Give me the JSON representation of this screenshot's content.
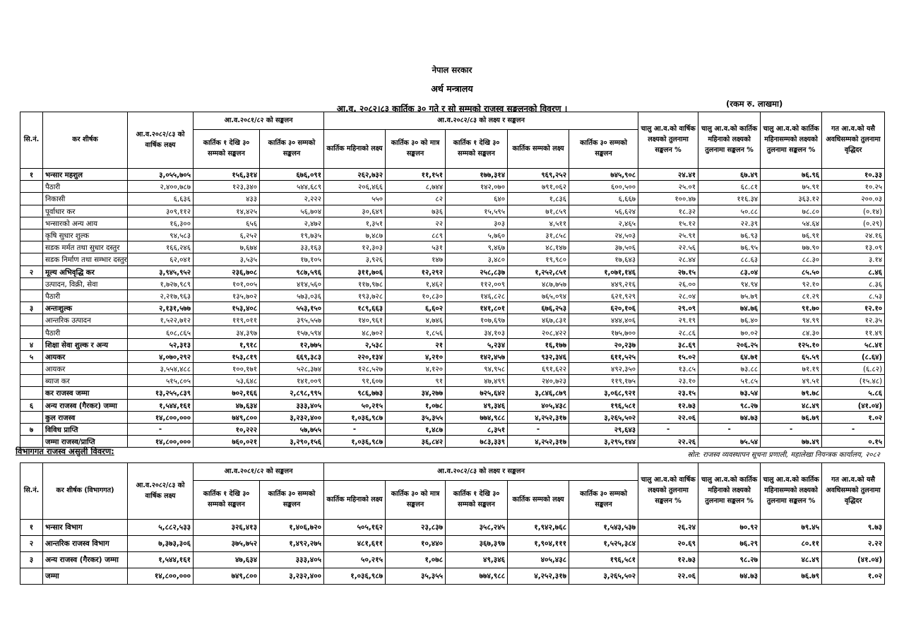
{
  "page": {
    "government": "नेपाल सरकार",
    "ministry": "अर्थ मन्त्रालय",
    "title": "आ.व. २०८२।८३ कार्तिक ३० गते र सो सम्मको राजस्व सङ्कलनको विवरण ।",
    "unit_note": "(रकम रु. लाखमा)"
  },
  "headers": {
    "sn": "सि.नं.",
    "tax_head": "कर शीर्षक",
    "tax_head_dept": "कर शीर्षक (विभागगत)",
    "annual_target": "आ.व.२०८२/८३ को वार्षिक लक्ष्य",
    "prev_group": "आ.व.२०८१/८२ को सङ्कलन",
    "prev_sub": [
      "कार्तिक १ देखि ३० सम्मको सङ्कलन",
      "कार्तिक ३० सम्मको सङ्कलन"
    ],
    "cur_group": "आ.व.२०८२/८३ को लक्ष्य र सङ्कलन",
    "cur_sub": [
      "कार्तिक महिनाको लक्ष्य",
      "कार्तिक ३० को मात्र सङ्कलन",
      "कार्तिक १ देखि ३० सम्मको सङ्कलन",
      "कार्तिक सम्मको लक्ष्य",
      "कार्तिक ३० सम्मको सङ्कलन"
    ],
    "pct": [
      "चालु आ.व.को वार्षिक लक्ष्यको तुलनामा सङ्कलन %",
      "चालु आ.व.को कार्तिक महिनाको लक्ष्यको तुलनामा सङ्कलन %",
      "चालु आ.व.को कार्तिक महिनासम्मको लक्ष्यको तुलनामा सङ्कलन %",
      "गत आ.व.को यसै अवधिसम्मको तुलनामा वृद्धिदर"
    ]
  },
  "main_table": {
    "rows": [
      {
        "sn": "१",
        "label": "भन्सार महशुल",
        "bold": true,
        "values": [
          "३,०५५,७०५",
          "१५६,३१४",
          "६७६,०९१",
          "२६२,७३२",
          "११,१५१",
          "१७७,३१४",
          "९६९,२५२",
          "७४५,९०८",
          "२४.४१",
          "६७.४९",
          "७६.९६",
          "१०.३३"
        ]
      },
      {
        "sn": "",
        "label": "पैठारी",
        "bold": false,
        "values": [
          "२,४००,७८७",
          "१२३,३४०",
          "५४४,६८९",
          "२०६,४६६",
          "८,७४४",
          "१४२,०७०",
          "७९१,०६२",
          "६००,५००",
          "२५.०१",
          "६८.८१",
          "७५.९१",
          "१०.२५"
        ]
      },
      {
        "sn": "",
        "label": "निकासी",
        "bold": false,
        "values": [
          "६,६३६",
          "४३३",
          "२,२२२",
          "५५०",
          "८२",
          "६४०",
          "१,८३६",
          "६,६६७",
          "१००.४७",
          "११६.३४",
          "३६३.१२",
          "२००.०३"
        ]
      },
      {
        "sn": "",
        "label": "पूर्वाधार कर",
        "bold": false,
        "values": [
          "३०९,११२",
          "१४,४२५",
          "५६,७०४",
          "३०,६४९",
          "७३६",
          "१५,५९५",
          "७१,८५९",
          "५६,६२४",
          "१८.३२",
          "५०.८८",
          "७८.८०",
          "(०.१४)"
        ]
      },
      {
        "sn": "",
        "label": "भन्सारको अन्य आय",
        "bold": false,
        "values": [
          "१६,३००",
          "६५६",
          "२,४७२",
          "१,३५१",
          "२२",
          "३०३",
          "४,५११",
          "२,४६५",
          "१५.१२",
          "२२.३९",
          "५४.६४",
          "(०.२९)"
        ]
      },
      {
        "sn": "",
        "label": "कृषि सुधार शुल्क",
        "bold": false,
        "values": [
          "९४,५८३",
          "६,२५२",
          "१९,७३५",
          "७,४८७",
          "८८९",
          "५,७६०",
          "३१,८५८",
          "२४,५०३",
          "२५.९१",
          "७६.९३",
          "७६.९१",
          "२४.१६"
        ]
      },
      {
        "sn": "",
        "label": "सडक मर्मत तथा सुधार दस्तुर",
        "bold": false,
        "values": [
          "१६६,२४६",
          "७,६७४",
          "३३,१६३",
          "१२,३०३",
          "५३१",
          "९,४६७",
          "४८,१४७",
          "३७,५०६",
          "२२.५६",
          "७६.९५",
          "७७.९०",
          "१३.०९"
        ]
      },
      {
        "sn": "",
        "label": "सडक निर्माण तथा सम्भार दस्तुर",
        "bold": false,
        "values": [
          "६२,०४१",
          "३,५३५",
          "१७,१०५",
          "३,९२६",
          "१४७",
          "३,४८०",
          "१९,९८०",
          "१७,६४३",
          "२८.४४",
          "८८.६३",
          "८८.३०",
          "३.१४"
        ]
      },
      {
        "sn": "२",
        "label": "मूल्य अभिवृद्धि कर",
        "bold": true,
        "values": [
          "३,९४५,९५२",
          "२३६,७०८",
          "९८७,५९६",
          "३११,७०६",
          "१२,२९२",
          "२५८,८३७",
          "१,२५२,८५१",
          "१,०७१,१४६",
          "२७.१५",
          "८३.०४",
          "८५.५०",
          "८.४६"
        ]
      },
      {
        "sn": "",
        "label": "उत्पादन, विक्री, सेवा",
        "bold": false,
        "values": [
          "१,७२७,९८९",
          "१०१,००५",
          "४१४,५६०",
          "११७,९७८",
          "१,४६२",
          "११२,००९",
          "४८७,७५७",
          "४४९,२१६",
          "२६.००",
          "९४.९४",
          "९२.१०",
          "८.३६"
        ]
      },
      {
        "sn": "",
        "label": "पैठारी",
        "bold": false,
        "values": [
          "२,२१७,९६३",
          "१३५,७०२",
          "५७३,०३६",
          "१९३,७२८",
          "१०,८३०",
          "१४६,८२८",
          "७६५,०९४",
          "६२१,९२९",
          "२८.०४",
          "७५.७९",
          "८१.२९",
          "८.५३"
        ]
      },
      {
        "sn": "३",
        "label": "अन्तःशुल्क",
        "bold": true,
        "values": [
          "२,१३१,५७७",
          "१५३,४०८",
          "५५३,१५०",
          "१८९,६६३",
          "६,६०२",
          "१४१,८०१",
          "६७६,२५३",
          "६२०,१०६",
          "२९.०९",
          "७४.७६",
          "९१.७०",
          "१२.१०"
        ]
      },
      {
        "sn": "",
        "label": "आन्तरिक उत्पादन",
        "bold": false,
        "values": [
          "१,५२२,७१२",
          "११९,०११",
          "३९५,५५७",
          "१४०,९६१",
          "४,७४६",
          "१०७,६९७",
          "४६७,८३१",
          "४४४,४०६",
          "२९.१९",
          "७६.४०",
          "९४.९९",
          "१२.३५"
        ]
      },
      {
        "sn": "",
        "label": "पैठारी",
        "bold": false,
        "values": [
          "६०८,८६५",
          "३४,३९७",
          "१५७,५९४",
          "४८,७०२",
          "१,८५६",
          "३४,१०३",
          "२०८,४२२",
          "१७५,७००",
          "२८.८६",
          "७०.०२",
          "८४.३०",
          "११.४९"
        ]
      },
      {
        "sn": "४",
        "label": "शिक्षा सेवा शुल्क र अन्य",
        "bold": true,
        "values": [
          "५२,३१३",
          "१,९१८",
          "१२,७७५",
          "२,५३८",
          "२१",
          "५,२३४",
          "१६,१७७",
          "२०,२३७",
          "३८.६९",
          "२०६.२५",
          "१२५.१०",
          "५८.४१"
        ]
      },
      {
        "sn": "५",
        "label": "आयकर",
        "bold": true,
        "values": [
          "४,०७०,२९२",
          "१५३,८१९",
          "६६९,३८३",
          "२२०,१३४",
          "४,२१०",
          "१४२,४५७",
          "९३२,३४६",
          "६११,५२५",
          "१५.०२",
          "६४.७१",
          "६५.५९",
          "(८.६४)"
        ]
      },
      {
        "sn": "",
        "label": "आयकर",
        "bold": false,
        "values": [
          "३,५५४,४८८",
          "१००,१७१",
          "५२८,३७४",
          "१२८,५२७",
          "४,१२०",
          "९४,९५८",
          "६९१,६२२",
          "४९२,३५०",
          "१३.८५",
          "७३.८८",
          "७१.१९",
          "(६.८२)"
        ]
      },
      {
        "sn": "",
        "label": "ब्याज कर",
        "bold": false,
        "values": [
          "५१५,८०५",
          "५३,६४८",
          "१४१,००९",
          "९१,६०७",
          "९१",
          "४७,४९९",
          "२४०,७२३",
          "११९,१७५",
          "२३.१०",
          "५१.८५",
          "४९.५१",
          "(१५.४८)"
        ]
      },
      {
        "sn": "",
        "label": "कर राजस्व जम्मा",
        "bold": true,
        "values": [
          "१३,२५५,८३९",
          "७०२,१६६",
          "२,८९८,९९५",
          "९८६,७७३",
          "३४,२७७",
          "७२५,६४२",
          "३,८४६,८७९",
          "३,०६८,९२१",
          "२३.१५",
          "७३.५४",
          "७९.७८",
          "५.८६"
        ]
      },
      {
        "sn": "६",
        "label": "अन्य राजस्व (गैरकर) जम्मा",
        "bold": true,
        "values": [
          "१,५४४,१६१",
          "४७,६३४",
          "३३३,४०५",
          "५०,२१५",
          "१,०७८",
          "४९,३४६",
          "४०५,४३८",
          "१९६,५८१",
          "१२.७३",
          "९८.२७",
          "४८.४९",
          "(४१.०४)"
        ]
      },
      {
        "sn": "",
        "label": "कुल राजस्व",
        "bold": true,
        "values": [
          "१४,८००,०००",
          "७४९,८००",
          "३,२३२,४००",
          "१,०३६,९८७",
          "३५,३५५",
          "७७४,९८८",
          "४,२५२,३१७",
          "३,२६५,५०२",
          "२२.०६",
          "७४.७३",
          "७६.७९",
          "१.०२"
        ]
      },
      {
        "sn": "७",
        "label": "विविध प्राप्ति",
        "bold": true,
        "values": [
          "-",
          "१०,२२२",
          "५७,७५५",
          "-",
          "१,४८७",
          "८,३५१",
          "-",
          "२९,६४३",
          "-",
          "-",
          "-",
          "-"
        ]
      },
      {
        "sn": "",
        "label": "जम्मा राजस्व/प्राप्ति",
        "bold": true,
        "values": [
          "१४,८००,०००",
          "७६०,०२१",
          "३,२९०,१५६",
          "१,०३६,९८७",
          "३६,८४२",
          "७८३,३३९",
          "४,२५२,३१७",
          "३,२९५,१४४",
          "२२.२६",
          "७५.५४",
          "७७.४९",
          "०.१५"
        ]
      }
    ]
  },
  "dept_section": {
    "title": "विभागगत राजस्व असुली विवरण:",
    "source": "स्रोत: राजस्व व्यवस्थापन सूचना प्रणाली, महालेखा नियन्त्रक कार्यालय, २०८२"
  },
  "dept_table": {
    "rows": [
      {
        "sn": "१",
        "label": "भन्सार विभाग",
        "bold": true,
        "values": [
          "५,८८२,५३३",
          "३२६,४१३",
          "१,४०६,७२०",
          "५०५,१६२",
          "२३,८३७",
          "३५८,२४५",
          "१,९४२,७६८",
          "१,५४३,५३७",
          "२६.२४",
          "७०.९२",
          "७९.४५",
          "९.७३"
        ]
      },
      {
        "sn": "२",
        "label": "आन्तरिक राजस्व विभाग",
        "bold": true,
        "values": [
          "७,३७३,३०६",
          "३७५,७५२",
          "१,४९२,२७५",
          "४८१,६११",
          "१०,४४०",
          "३६७,३९७",
          "१,९०४,१११",
          "१,५२५,३८४",
          "२०.६९",
          "७६.२९",
          "८०.११",
          "२.२२"
        ]
      },
      {
        "sn": "३",
        "label": "अन्य राजस्व (गैरकर) जम्मा",
        "bold": true,
        "values": [
          "१,५४४,१६१",
          "४७,६३४",
          "३३३,४०५",
          "५०,२१५",
          "१,०७८",
          "४९,३४६",
          "४०५,४३८",
          "१९६,५८१",
          "१२.७३",
          "९८.२७",
          "४८.४९",
          "(४१.०४)"
        ]
      },
      {
        "sn": "",
        "label": "जम्मा",
        "bold": true,
        "values": [
          "१४,८००,०००",
          "७४९,८००",
          "३,२३२,४००",
          "१,०३६,९८७",
          "३५,३५५",
          "७७४,९८८",
          "४,२५२,३१७",
          "३,२६५,५०२",
          "२२.०६",
          "७४.७३",
          "७६.७९",
          "१.०२"
        ]
      }
    ]
  }
}
